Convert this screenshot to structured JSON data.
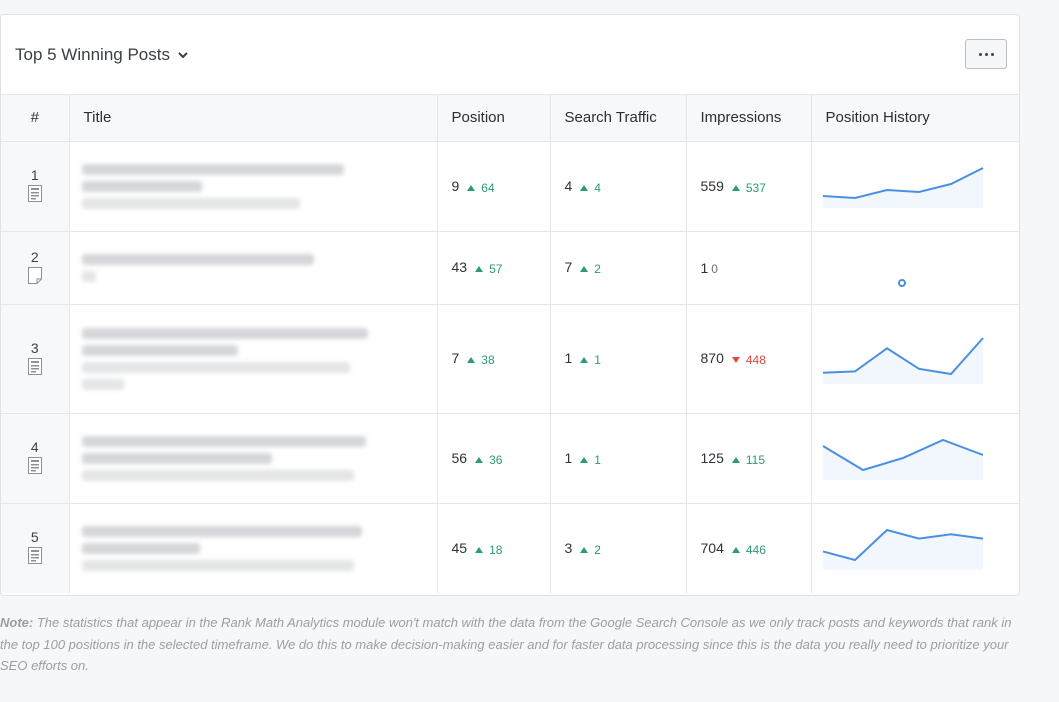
{
  "card": {
    "title": "Top 5 Winning Posts",
    "menu_icon": "ellipsis-icon"
  },
  "table": {
    "headers": [
      "#",
      "Title",
      "Position",
      "Search Traffic",
      "Impressions",
      "Position History"
    ],
    "rows": [
      {
        "num": "1",
        "icon": "post-icon",
        "position": "9",
        "position_delta": "64",
        "position_dir": "up",
        "traffic": "4",
        "traffic_delta": "4",
        "traffic_dir": "up",
        "impressions": "559",
        "impressions_delta": "537",
        "impressions_dir": "up",
        "history": [
          15,
          16,
          12,
          13,
          9,
          1
        ]
      },
      {
        "num": "2",
        "icon": "page-icon",
        "position": "43",
        "position_delta": "57",
        "position_dir": "up",
        "traffic": "7",
        "traffic_delta": "2",
        "traffic_dir": "up",
        "impressions": "1",
        "impressions_delta": "0",
        "impressions_dir": "zero",
        "history": [
          43
        ]
      },
      {
        "num": "3",
        "icon": "post-icon",
        "position": "7",
        "position_delta": "38",
        "position_dir": "up",
        "traffic": "1",
        "traffic_delta": "1",
        "traffic_dir": "up",
        "impressions": "870",
        "impressions_delta": "448",
        "impressions_dir": "down",
        "history": [
          28,
          27,
          9,
          25,
          29,
          1
        ]
      },
      {
        "num": "4",
        "icon": "post-icon",
        "position": "56",
        "position_delta": "36",
        "position_dir": "up",
        "traffic": "1",
        "traffic_delta": "1",
        "traffic_dir": "up",
        "impressions": "125",
        "impressions_delta": "115",
        "impressions_dir": "up",
        "history": [
          10,
          18,
          14,
          8,
          13
        ]
      },
      {
        "num": "5",
        "icon": "post-icon",
        "position": "45",
        "position_delta": "18",
        "position_dir": "up",
        "traffic": "3",
        "traffic_delta": "2",
        "traffic_dir": "up",
        "impressions": "704",
        "impressions_delta": "446",
        "impressions_dir": "up",
        "history": [
          14,
          16,
          9,
          11,
          10,
          11
        ]
      }
    ]
  },
  "note": {
    "label": "Note:",
    "text": " The statistics that appear in the Rank Math Analytics module won't match with the data from the Google Search Console as we only track posts and keywords that rank in the top 100 positions in the selected timeframe. We do this to make decision-making easier and for faster data processing since this is the data you really need to prioritize your SEO efforts on."
  },
  "colors": {
    "accent": "#4a90e2",
    "up": "#2d9b75",
    "down": "#e2493e"
  }
}
